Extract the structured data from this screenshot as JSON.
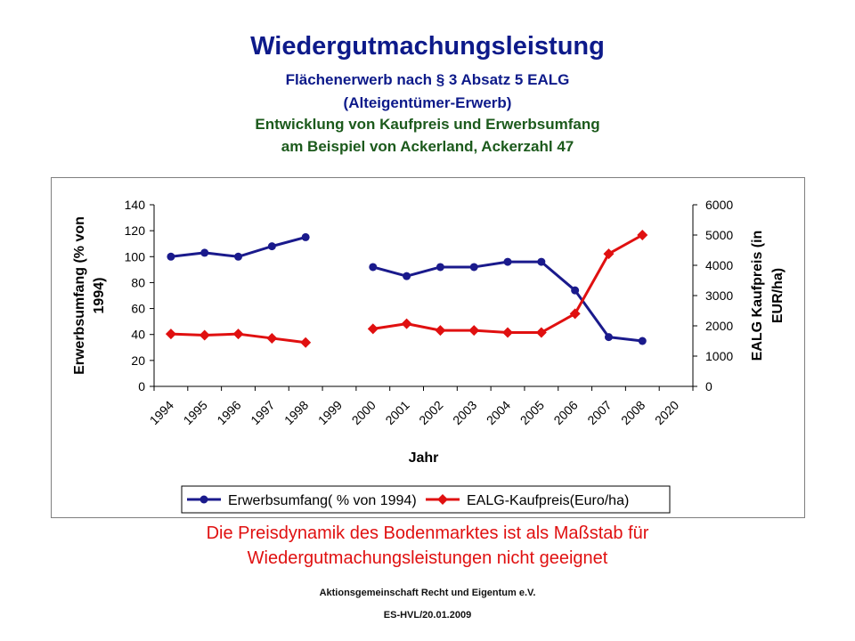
{
  "header": {
    "title": "Wiedergutmachungsleistung",
    "subtitle_1": "Flächenerwerb nach § 3 Absatz 5 EALG",
    "subtitle_2": "(Alteigentümer-Erwerb)",
    "subtitle_3": "Entwicklung von Kaufpreis und Erwerbsumfang",
    "subtitle_4": "am Beispiel von Ackerland, Ackerzahl 47"
  },
  "chart_data": {
    "type": "line",
    "categories": [
      "1994",
      "1995",
      "1996",
      "1997",
      "1998",
      "1999",
      "2000",
      "2001",
      "2002",
      "2003",
      "2004",
      "2005",
      "2006",
      "2007",
      "2008",
      "2020"
    ],
    "xlabel": "Jahr",
    "ylabel_left_line1": "Erwerbsumfang (% von",
    "ylabel_left_line2": "1994)",
    "ylabel_right_line1": "EALG Kaufpreis (in",
    "ylabel_right_line2": "EUR/ha)",
    "ylim_left": [
      0,
      140
    ],
    "yticks_left": [
      0,
      20,
      40,
      60,
      80,
      100,
      120,
      140
    ],
    "ylim_right": [
      0,
      6000
    ],
    "yticks_right": [
      0,
      1000,
      2000,
      3000,
      4000,
      5000,
      6000
    ],
    "grid": false,
    "legend_position": "bottom",
    "series": [
      {
        "name": "Erwerbsumfang( % von 1994)",
        "axis": "left",
        "color": "#1a1a8c",
        "marker": "circle",
        "values": [
          100,
          103,
          100,
          108,
          115,
          null,
          92,
          85,
          92,
          92,
          96,
          96,
          74,
          38,
          35,
          null
        ]
      },
      {
        "name": "EALG-Kaufpreis(Euro/ha)",
        "axis": "right",
        "color": "#e01010",
        "marker": "diamond",
        "values": [
          1730,
          1690,
          1730,
          1590,
          1450,
          null,
          1900,
          2070,
          1850,
          1850,
          1780,
          1780,
          2400,
          4380,
          5000,
          null
        ]
      }
    ]
  },
  "notes": {
    "line_1": "Die Preisdynamik des Bodenmarktes ist als Maßstab für",
    "line_2": "Wiedergutmachungsleistungen nicht geeignet"
  },
  "footer": {
    "line_1": "Aktionsgemeinschaft Recht und Eigentum e.V.",
    "line_2": "ES-HVL/20.01.2009"
  }
}
